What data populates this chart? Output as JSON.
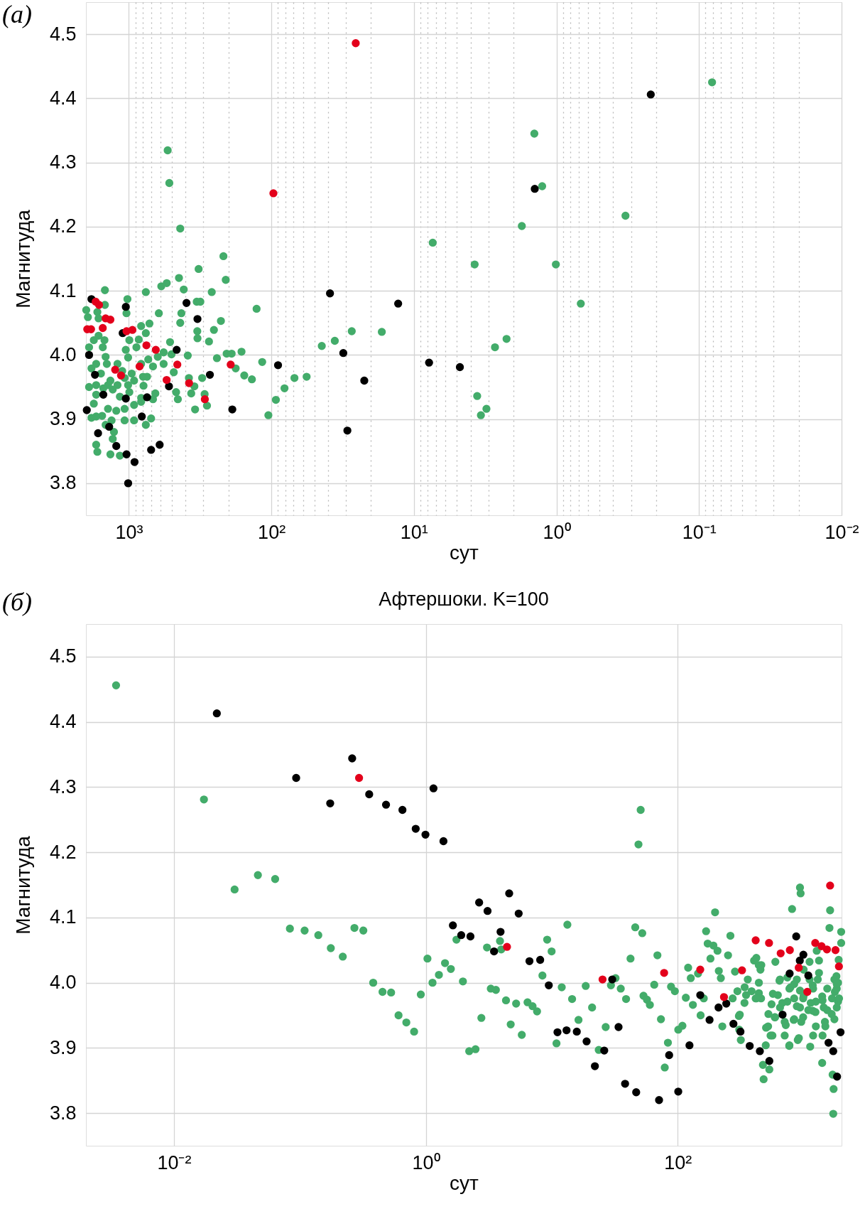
{
  "chart_data": [
    {
      "type": "scatter",
      "annotations": [
        "(а)"
      ],
      "xlabel": "сут",
      "ylabel": "Магнитуда",
      "log": "x",
      "grid": true,
      "marker": "circle",
      "xlim": [
        2000,
        0.01
      ],
      "xticks": [
        {
          "value": 1000,
          "label": "10³"
        },
        {
          "value": 900,
          "label": null
        },
        {
          "value": 800,
          "label": null
        },
        {
          "value": 700,
          "label": null
        },
        {
          "value": 600,
          "label": null
        },
        {
          "value": 500,
          "label": null
        },
        {
          "value": 400,
          "label": null
        },
        {
          "value": 300,
          "label": null
        },
        {
          "value": 200,
          "label": null
        },
        {
          "value": 100,
          "label": "10²"
        },
        {
          "value": 90,
          "label": null
        },
        {
          "value": 80,
          "label": null
        },
        {
          "value": 70,
          "label": null
        },
        {
          "value": 60,
          "label": null
        },
        {
          "value": 50,
          "label": null
        },
        {
          "value": 40,
          "label": null
        },
        {
          "value": 30,
          "label": null
        },
        {
          "value": 20,
          "label": null
        },
        {
          "value": 10,
          "label": "10¹"
        },
        {
          "value": 9,
          "label": null
        },
        {
          "value": 8,
          "label": null
        },
        {
          "value": 7,
          "label": null
        },
        {
          "value": 6,
          "label": null
        },
        {
          "value": 5,
          "label": null
        },
        {
          "value": 4,
          "label": null
        },
        {
          "value": 3,
          "label": null
        },
        {
          "value": 2,
          "label": null
        },
        {
          "value": 1,
          "label": "10⁰"
        },
        {
          "value": 0.9,
          "label": null
        },
        {
          "value": 0.8,
          "label": null
        },
        {
          "value": 0.7,
          "label": null
        },
        {
          "value": 0.6,
          "label": null
        },
        {
          "value": 0.5,
          "label": null
        },
        {
          "value": 0.4,
          "label": null
        },
        {
          "value": 0.3,
          "label": null
        },
        {
          "value": 0.2,
          "label": null
        },
        {
          "value": 0.1,
          "label": "10⁻¹"
        },
        {
          "value": 0.09,
          "label": null
        },
        {
          "value": 0.08,
          "label": null
        },
        {
          "value": 0.07,
          "label": null
        },
        {
          "value": 0.06,
          "label": null
        },
        {
          "value": 0.05,
          "label": null
        },
        {
          "value": 0.04,
          "label": null
        },
        {
          "value": 0.03,
          "label": null
        },
        {
          "value": 0.02,
          "label": null
        },
        {
          "value": 0.01,
          "label": "10⁻²"
        }
      ],
      "ylim": [
        3.75,
        4.55
      ],
      "yticks": [
        3.8,
        3.9,
        {
          "value": 4,
          "label": "4.0"
        },
        4.1,
        4.2,
        4.3,
        4.4,
        4.5
      ],
      "series": [
        {
          "color": "#43ac6a",
          "x": [
            1472,
            760,
            445,
            592,
            542,
            412,
            262,
            209,
            1023,
            1472,
            1039,
            1990,
            1937,
            1663,
            1631,
            616,
            717,
            436,
            428,
            334,
            315,
            331,
            330,
            253,
            226,
            274,
            820,
            760,
            852,
            885,
            992,
            1051,
            1012,
            1483,
            1761,
            1901,
            1631,
            1523,
            1455,
            1427,
            1695,
            1829,
            1570,
            1347,
            1201,
            1113,
            955,
            820,
            731,
            677,
            627,
            570,
            514,
            502,
            386,
            570,
            795,
            745,
            919,
            1012,
            1071,
            1201,
            1400,
            1695,
            1901,
            1695,
            1511,
            1297,
            1156,
            992,
            789,
            652,
            677,
            820,
            919,
            1071,
            1225,
            1400,
            1540,
            1761,
            1829,
            1695,
            1322,
            1455,
            1272,
            1297,
            1156,
            1347,
            1695,
            1663,
            919,
            760,
            698,
            466,
            453,
            484,
            365,
            379,
            347,
            306,
            294,
            283,
            343,
            241,
            206,
            190,
            178,
            1071,
            820,
            534,
            520,
            436,
            217,
            324,
            127,
            116,
            162,
            155,
            137,
            93,
            105,
            0.081,
            1.43,
            1.26,
            0.328,
            1.75,
            7.38,
            3.75,
            1.01,
            0.675,
            27.3,
            16.8,
            35.9,
            44.3,
            2.24,
            2.7,
            56.6,
            68.9,
            80.9,
            3.6,
            3.1,
            3.39
          ],
          "values": [
            4.101,
            4.098,
            4.12,
            4.107,
            4.112,
            4.102,
            4.098,
            4.117,
            4.087,
            4.078,
            4.065,
            4.07,
            4.059,
            4.067,
            4.057,
            4.065,
            4.049,
            4.05,
            4.065,
            4.083,
            4.083,
            4.037,
            4.026,
            4.039,
            4.053,
            4.021,
            4.045,
            4.034,
            4.024,
            4.012,
            4.023,
            4.008,
            3.996,
            4.023,
            4.023,
            4.012,
            4.03,
            4.012,
            3.997,
            3.986,
            3.986,
            3.979,
            3.971,
            3.96,
            3.986,
            3.975,
            3.971,
            3.986,
            3.993,
            3.982,
            3.997,
            4.004,
            4.02,
            4.001,
            3.999,
            3.986,
            3.966,
            3.966,
            3.96,
            3.953,
            3.964,
            3.953,
            3.953,
            3.953,
            3.95,
            3.938,
            3.948,
            3.946,
            3.935,
            3.942,
            3.952,
            3.94,
            3.931,
            3.933,
            3.922,
            3.916,
            3.913,
            3.916,
            3.905,
            3.924,
            3.902,
            3.904,
            3.898,
            3.891,
            3.88,
            3.869,
            3.843,
            3.845,
            3.86,
            3.849,
            3.898,
            3.891,
            3.901,
            3.942,
            3.931,
            3.973,
            3.94,
            3.964,
            3.951,
            3.964,
            3.939,
            3.921,
            3.915,
            3.995,
            4.002,
            4.002,
            3.979,
            3.898,
            3.927,
            4.319,
            4.268,
            4.197,
            4.154,
            4.134,
            4.072,
            3.989,
            4.005,
            3.968,
            3.962,
            3.93,
            3.906,
            4.425,
            4.345,
            4.263,
            4.217,
            4.201,
            4.175,
            4.141,
            4.141,
            4.08,
            4.037,
            4.036,
            4.022,
            4.014,
            4.025,
            4.012,
            3.966,
            3.964,
            3.948,
            3.936,
            3.916,
            3.906
          ]
        },
        {
          "color": "#000000",
          "x": [
            1830,
            1050,
            1105,
            1901,
            1728,
            1510,
            1050,
            745,
            1972,
            811,
            1374,
            1644,
            1225,
            1038,
            912,
            698,
            608,
            1011,
            462,
            394,
            330,
            270,
            523,
            188,
            89.8,
            38.8,
            12.9,
            31.3,
            7.83,
            4.76,
            22.3,
            29.3,
            1.42,
            0.218
          ],
          "values": [
            4.087,
            4.075,
            4.034,
            4.0,
            3.969,
            3.938,
            3.932,
            3.934,
            3.914,
            3.904,
            3.888,
            3.878,
            3.858,
            3.845,
            3.833,
            3.852,
            3.86,
            3.8,
            4.008,
            4.081,
            4.056,
            3.969,
            3.951,
            3.915,
            3.984,
            4.096,
            4.08,
            4.003,
            3.988,
            3.981,
            3.96,
            3.882,
            4.259,
            4.406
          ]
        },
        {
          "color": "#e3001b",
          "x": [
            1708,
            1618,
            1455,
            1347,
            1958,
            1841,
            1524,
            1038,
            944,
            753,
            647,
            841,
            1247,
            1135,
            543,
            457,
            378,
            293,
            193,
            96.8,
            25.6
          ],
          "values": [
            4.083,
            4.078,
            4.057,
            4.055,
            4.04,
            4.04,
            4.042,
            4.037,
            4.039,
            4.015,
            4.008,
            3.982,
            3.977,
            3.968,
            3.961,
            3.985,
            3.956,
            3.931,
            3.985,
            4.252,
            4.486
          ]
        }
      ]
    },
    {
      "type": "scatter",
      "title": "Афтершоки. K=100",
      "annotations": [
        "(б)"
      ],
      "xlabel": "сут",
      "ylabel": "Магнитуда",
      "log": "x",
      "grid": true,
      "marker": "circle",
      "xlim": [
        0.002,
        2000
      ],
      "xticks": [
        {
          "value": 0.01,
          "label": "10⁻²"
        },
        {
          "value": 1,
          "label": "10⁰"
        },
        {
          "value": 100,
          "label": "10²"
        }
      ],
      "ylim": [
        3.75,
        4.55
      ],
      "yticks": [
        3.8,
        3.9,
        {
          "value": 4,
          "label": "4.0"
        },
        4.1,
        4.2,
        4.3,
        4.4,
        4.5
      ],
      "series": [
        {
          "color": "#43ac6a",
          "x": [
            0.00347,
            0.0173,
            0.0303,
            0.0464,
            0.0636,
            0.0833,
            0.109,
            0.14,
            0.176,
            0.219,
            0.271,
            0.319,
            0.382,
            0.453,
            0.53,
            0.607,
            0.7,
            0.807,
            0.912,
            1.03,
            1.13,
            50.8,
            48.8,
            1.75,
            3.88,
            3.06,
            3.97,
            13.3,
            9.19,
            9.97,
            1.42,
            1.58,
            1.27,
            1.97,
            8.43,
            3.28,
            3.6,
            4.33,
            5.21,
            6.42,
            7.04,
            7.64,
            2.76,
            4.72,
            5.78,
            2.21,
            2.48,
            10.9,
            12.0,
            14.5,
            18.6,
            20.9,
            16.3,
            23.6,
            26.8,
            29.5,
            32.1,
            35.3,
            38.9,
            42.2,
            46.0,
            52.3,
            69.0,
            65.1,
            53.5,
            57.0,
            60.1,
            73.6,
            83.6,
            78.9,
            88.5,
            94.9,
            101,
            109,
            116,
            121,
            127,
            132,
            145,
            161,
            152,
            168,
            198,
            173,
            192,
            207,
            182,
            212,
            220,
            262,
            251,
            285,
            226,
            306,
            317,
            481,
            475,
            534,
            809,
            935,
            946,
            1622,
            1603,
            1986,
            1986,
            1897,
            1718,
            1729,
            1698,
            1403,
            768,
            1127,
            898,
            565,
            503,
            589,
            721,
            834,
            991,
            1180,
            1444,
            1670,
            1874,
            1770,
            1874,
            1821,
            1324,
            1180,
            1403,
            1250,
            991,
            883,
            743,
            624,
            556,
            525,
            643,
            787,
            935,
            1114,
            883,
            743,
            441,
            441,
            416,
            454,
            404,
            461,
            596,
            360,
            340,
            308,
            349,
            1250,
            1487,
            1270,
            1324,
            1114,
            570,
            677,
            771,
            841,
            936,
            1000,
            1138,
            1241,
            1413,
            1540,
            1680,
            1832,
            1832,
            1754,
            1295,
            1189,
            1089,
            957,
            841,
            707,
            594,
            522,
            649,
            707,
            916,
            1189,
            1475,
            1754,
            1000,
            841,
            649,
            459,
            421,
            386,
            298,
            339,
            273,
            311,
            500,
            546,
            771,
            1413,
            1832,
            1910,
            1540,
            440,
            421
          ],
          "values": [
            4.456,
            4.281,
            4.143,
            4.165,
            4.159,
            4.083,
            4.08,
            4.073,
            4.053,
            4.04,
            4.084,
            4.08,
            4.0,
            3.986,
            3.985,
            3.95,
            3.939,
            3.925,
            3.982,
            4.037,
            4.0,
            4.265,
            4.212,
            4.066,
            4.064,
            4.054,
            4.051,
            4.089,
            4.066,
            4.048,
            4.03,
            4.021,
            4.012,
            4.002,
            4.011,
            3.991,
            3.989,
            3.973,
            3.968,
            3.97,
            3.964,
            3.956,
            3.946,
            3.936,
            3.92,
            3.895,
            3.898,
            3.907,
            3.993,
            3.975,
            3.995,
            3.962,
            3.943,
            3.897,
            3.932,
            3.996,
            4.007,
            3.991,
            3.975,
            4.037,
            4.085,
            4.076,
            4.042,
            3.997,
            3.98,
            3.974,
            3.966,
            3.944,
            3.908,
            3.87,
            3.994,
            3.987,
            3.928,
            3.934,
            3.977,
            4.023,
            4.007,
            3.966,
            4.014,
            3.976,
            3.95,
            4.079,
            4.108,
            4.06,
            4.057,
            4.049,
            4.037,
            4.018,
            4.007,
            4.072,
            4.042,
            4.017,
            3.933,
            3.949,
            3.912,
            3.852,
            3.874,
            3.867,
            4.113,
            4.146,
            4.137,
            4.111,
            4.084,
            4.078,
            4.061,
            4.035,
            3.799,
            3.837,
            3.859,
            3.877,
            3.903,
            3.902,
            3.912,
            3.919,
            3.931,
            3.947,
            3.935,
            3.943,
            3.947,
            3.957,
            3.962,
            3.952,
            3.971,
            3.986,
            4.0,
            4.01,
            4.015,
            3.996,
            3.979,
            3.971,
            3.976,
            3.964,
            3.971,
            3.981,
            3.967,
            3.952,
            4.003,
            3.993,
            3.988,
            4.005,
            4.005,
            4.008,
            3.984,
            4.0,
            3.976,
            4.02,
            4.034,
            4.027,
            4.032,
            4.005,
            3.993,
            3.928,
            3.981,
            3.933,
            3.933,
            4.049,
            4.034,
            4.032,
            3.983,
            3.969,
            3.991,
            3.976,
            3.962,
            3.98,
            3.969,
            3.955,
            3.973,
            3.958,
            3.976,
            3.962,
            3.991,
            4.005,
            4.005,
            3.991,
            3.958,
            3.94,
            3.944,
            3.94,
            3.947,
            3.933,
            3.962,
            3.919,
            3.915,
            3.919,
            3.94,
            3.944,
            4.02,
            3.998,
            4.005,
            3.976,
            3.976,
            3.987,
            3.987,
            3.969,
            3.976,
            3.951,
            3.904,
            3.919,
            3.904,
            3.919,
            3.998,
            3.976,
            3.991,
            4.027,
            4.038
          ]
        },
        {
          "color": "#000000",
          "x": [
            0.0219,
            0.0934,
            0.26,
            0.174,
            0.355,
            0.483,
            0.652,
            0.831,
            0.993,
            1.15,
            1.38,
            4.59,
            2.65,
            3.09,
            5.46,
            1.64,
            1.91,
            2.26,
            3.92,
            3.48,
            6.65,
            8.09,
            9.47,
            11.1,
            13.1,
            15.8,
            18.9,
            22.0,
            26.1,
            33.9,
            38.2,
            46.8,
            71.1,
            85.5,
            101,
            124,
            30.2,
            151,
            179,
            211,
            243,
            277,
            315,
            373,
            449,
            534,
            873,
            995,
            932,
            774,
            1089,
            680,
            1576,
            1718,
            1963,
            1842
          ],
          "values": [
            4.413,
            4.314,
            4.344,
            4.275,
            4.289,
            4.273,
            4.265,
            4.236,
            4.227,
            4.298,
            4.217,
            4.137,
            4.123,
            4.11,
            4.106,
            4.088,
            4.073,
            4.071,
            4.078,
            4.048,
            4.033,
            4.035,
            3.996,
            3.924,
            3.927,
            3.925,
            3.91,
            3.872,
            3.896,
            3.932,
            3.845,
            3.832,
            3.82,
            3.889,
            3.833,
            3.904,
            4.005,
            3.981,
            3.943,
            3.962,
            3.968,
            3.937,
            3.925,
            3.903,
            3.895,
            3.88,
            4.071,
            4.043,
            4.034,
            4.014,
            4.011,
            3.951,
            3.908,
            3.895,
            3.924,
            3.856
          ]
        },
        {
          "color": "#e3001b",
          "x": [
            0.295,
            4.41,
            25.3,
            78.0,
            151,
            324,
            233,
            416,
            531,
            657,
            777,
            1622,
            1236,
            1387,
            1531,
            1790,
            1906,
            1069,
            914
          ],
          "values": [
            4.314,
            4.055,
            4.005,
            4.015,
            4.02,
            4.019,
            3.978,
            4.065,
            4.061,
            4.045,
            4.05,
            4.149,
            4.061,
            4.056,
            4.051,
            4.05,
            4.025,
            3.986,
            4.023
          ]
        }
      ]
    }
  ]
}
